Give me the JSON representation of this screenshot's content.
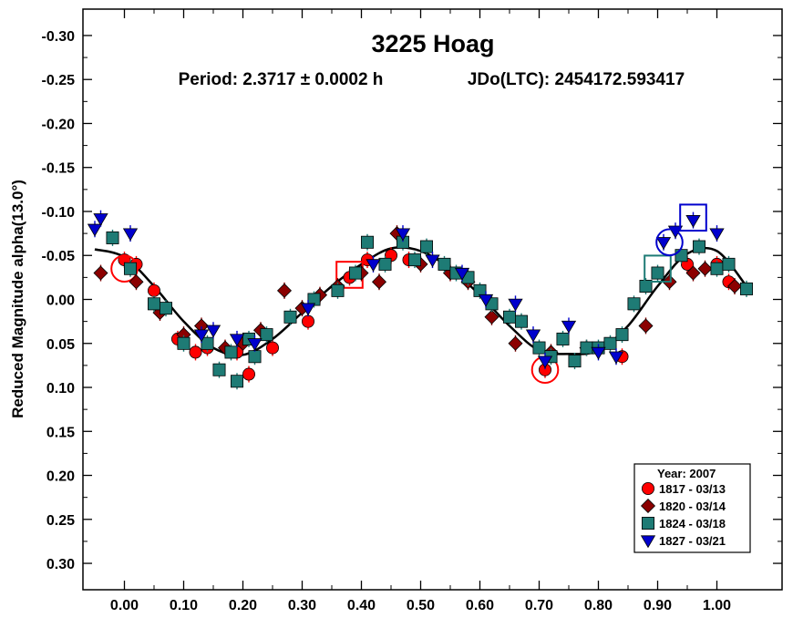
{
  "chart_data": {
    "type": "scatter",
    "title": "3225 Hoag",
    "subtitle_period": "Period: 2.3717 ± 0.0002 h",
    "subtitle_epoch": "JDo(LTC): 2454172.593417",
    "ylabel": "Reduced Magnitude alpha(13.0°)",
    "xlim": [
      -0.07,
      1.11
    ],
    "ylim": [
      0.33,
      -0.33
    ],
    "y_inverted": true,
    "grid": false,
    "legend_position": "bottom-right",
    "x_ticks": [
      "0.00",
      "0.10",
      "0.20",
      "0.30",
      "0.40",
      "0.50",
      "0.60",
      "0.70",
      "0.80",
      "0.90",
      "1.00"
    ],
    "x_tick_values": [
      0.0,
      0.1,
      0.2,
      0.3,
      0.4,
      0.5,
      0.6,
      0.7,
      0.8,
      0.9,
      1.0
    ],
    "y_ticks": [
      "-0.30",
      "-0.25",
      "-0.20",
      "-0.15",
      "-0.10",
      "-0.05",
      "0.00",
      "0.05",
      "0.10",
      "0.15",
      "0.20",
      "0.25",
      "0.30"
    ],
    "y_tick_values": [
      -0.3,
      -0.25,
      -0.2,
      -0.15,
      -0.1,
      -0.05,
      0.0,
      0.05,
      0.1,
      0.15,
      0.2,
      0.25,
      0.3
    ],
    "legend_title": "Year: 2007",
    "fit_curve": {
      "color": "#000000",
      "x": [
        -0.05,
        0.0,
        0.05,
        0.1,
        0.15,
        0.2,
        0.25,
        0.3,
        0.35,
        0.4,
        0.45,
        0.5,
        0.55,
        0.6,
        0.65,
        0.7,
        0.75,
        0.8,
        0.85,
        0.9,
        0.95,
        1.0,
        1.05
      ],
      "y": [
        -0.057,
        -0.048,
        -0.015,
        0.025,
        0.055,
        0.063,
        0.045,
        0.015,
        -0.015,
        -0.04,
        -0.058,
        -0.055,
        -0.035,
        -0.005,
        0.03,
        0.058,
        0.062,
        0.058,
        0.03,
        -0.015,
        -0.052,
        -0.055,
        -0.015
      ]
    },
    "series": [
      {
        "name": "1817 - 03/13",
        "marker": "circle",
        "color": "#ff0000",
        "points": [
          [
            0.0,
            -0.045
          ],
          [
            0.02,
            -0.04
          ],
          [
            0.05,
            -0.01
          ],
          [
            0.09,
            0.045
          ],
          [
            0.12,
            0.06
          ],
          [
            0.14,
            0.055
          ],
          [
            0.19,
            0.06
          ],
          [
            0.21,
            0.085
          ],
          [
            0.25,
            0.055
          ],
          [
            0.31,
            0.025
          ],
          [
            0.38,
            -0.025
          ],
          [
            0.41,
            -0.045
          ],
          [
            0.45,
            -0.05
          ],
          [
            0.48,
            -0.045
          ],
          [
            0.71,
            0.08
          ],
          [
            0.84,
            0.065
          ],
          [
            0.95,
            -0.04
          ],
          [
            1.0,
            -0.04
          ],
          [
            1.02,
            -0.02
          ]
        ],
        "open_markers": [
          [
            0.0,
            -0.035,
            "circle"
          ],
          [
            0.38,
            -0.028,
            "square"
          ],
          [
            0.71,
            0.08,
            "circle"
          ]
        ]
      },
      {
        "name": "1820 - 03/14",
        "marker": "diamond",
        "color": "#8b0000",
        "points": [
          [
            -0.04,
            -0.03
          ],
          [
            0.02,
            -0.02
          ],
          [
            0.06,
            0.015
          ],
          [
            0.1,
            0.04
          ],
          [
            0.13,
            0.03
          ],
          [
            0.17,
            0.055
          ],
          [
            0.2,
            0.05
          ],
          [
            0.23,
            0.035
          ],
          [
            0.27,
            -0.01
          ],
          [
            0.3,
            0.01
          ],
          [
            0.33,
            -0.005
          ],
          [
            0.36,
            -0.015
          ],
          [
            0.4,
            -0.03
          ],
          [
            0.43,
            -0.02
          ],
          [
            0.46,
            -0.075
          ],
          [
            0.5,
            -0.04
          ],
          [
            0.55,
            -0.03
          ],
          [
            0.58,
            -0.02
          ],
          [
            0.62,
            0.02
          ],
          [
            0.66,
            0.05
          ],
          [
            0.72,
            0.06
          ],
          [
            0.78,
            0.055
          ],
          [
            0.88,
            0.03
          ],
          [
            0.92,
            -0.02
          ],
          [
            0.96,
            -0.03
          ],
          [
            0.98,
            -0.035
          ],
          [
            1.03,
            -0.015
          ]
        ]
      },
      {
        "name": "1824 - 03/18",
        "marker": "square",
        "color": "#1e7b75",
        "points": [
          [
            -0.02,
            -0.07
          ],
          [
            0.01,
            -0.035
          ],
          [
            0.05,
            0.005
          ],
          [
            0.07,
            0.01
          ],
          [
            0.1,
            0.05
          ],
          [
            0.14,
            0.05
          ],
          [
            0.16,
            0.08
          ],
          [
            0.18,
            0.06
          ],
          [
            0.19,
            0.093
          ],
          [
            0.21,
            0.045
          ],
          [
            0.22,
            0.065
          ],
          [
            0.24,
            0.04
          ],
          [
            0.28,
            0.02
          ],
          [
            0.32,
            0.0
          ],
          [
            0.36,
            -0.01
          ],
          [
            0.39,
            -0.03
          ],
          [
            0.41,
            -0.065
          ],
          [
            0.44,
            -0.04
          ],
          [
            0.47,
            -0.065
          ],
          [
            0.49,
            -0.045
          ],
          [
            0.51,
            -0.06
          ],
          [
            0.54,
            -0.04
          ],
          [
            0.56,
            -0.03
          ],
          [
            0.58,
            -0.025
          ],
          [
            0.6,
            -0.01
          ],
          [
            0.62,
            0.005
          ],
          [
            0.65,
            0.02
          ],
          [
            0.67,
            0.025
          ],
          [
            0.7,
            0.055
          ],
          [
            0.72,
            0.065
          ],
          [
            0.74,
            0.045
          ],
          [
            0.76,
            0.07
          ],
          [
            0.78,
            0.055
          ],
          [
            0.8,
            0.055
          ],
          [
            0.82,
            0.05
          ],
          [
            0.84,
            0.04
          ],
          [
            0.86,
            0.005
          ],
          [
            0.88,
            -0.015
          ],
          [
            0.9,
            -0.03
          ],
          [
            0.94,
            -0.05
          ],
          [
            0.97,
            -0.06
          ],
          [
            1.0,
            -0.035
          ],
          [
            1.02,
            -0.04
          ],
          [
            1.05,
            -0.012
          ]
        ],
        "open_markers": [
          [
            0.9,
            -0.035,
            "square"
          ]
        ]
      },
      {
        "name": "1827 - 03/21",
        "marker": "triangle",
        "color": "#0000cd",
        "points": [
          [
            -0.05,
            -0.08
          ],
          [
            -0.04,
            -0.092
          ],
          [
            0.01,
            -0.075
          ],
          [
            0.13,
            0.04
          ],
          [
            0.15,
            0.035
          ],
          [
            0.19,
            0.045
          ],
          [
            0.22,
            0.05
          ],
          [
            0.31,
            0.01
          ],
          [
            0.42,
            -0.04
          ],
          [
            0.47,
            -0.075
          ],
          [
            0.52,
            -0.045
          ],
          [
            0.57,
            -0.03
          ],
          [
            0.61,
            0.0
          ],
          [
            0.66,
            0.005
          ],
          [
            0.69,
            0.04
          ],
          [
            0.71,
            0.07
          ],
          [
            0.75,
            0.03
          ],
          [
            0.8,
            0.06
          ],
          [
            0.83,
            0.065
          ],
          [
            0.91,
            -0.065
          ],
          [
            0.93,
            -0.078
          ],
          [
            0.96,
            -0.09
          ],
          [
            1.0,
            -0.075
          ]
        ],
        "open_markers": [
          [
            0.92,
            -0.065,
            "circle"
          ],
          [
            0.96,
            -0.093,
            "square"
          ]
        ]
      }
    ]
  }
}
